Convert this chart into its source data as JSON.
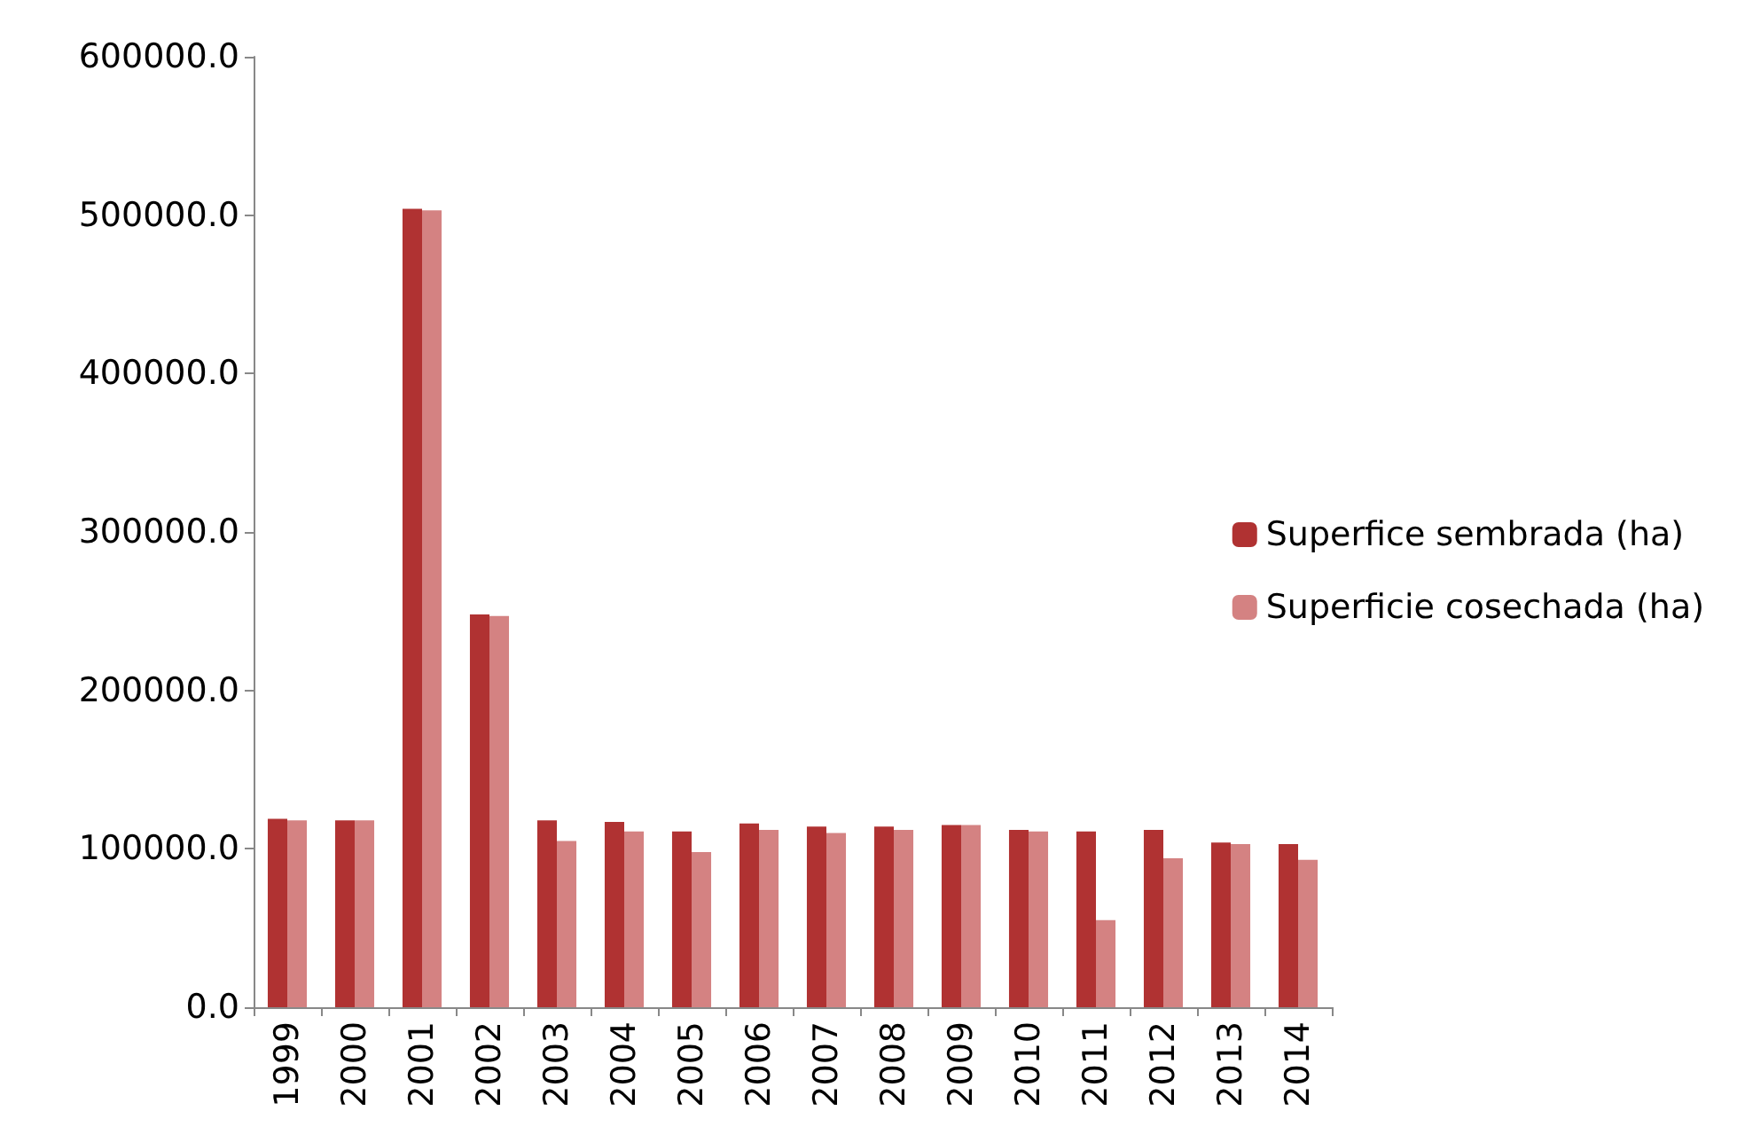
{
  "chart_data": {
    "type": "bar",
    "categories": [
      "1999",
      "2000",
      "2001",
      "2002",
      "2003",
      "2004",
      "2005",
      "2006",
      "2007",
      "2008",
      "2009",
      "2010",
      "2011",
      "2012",
      "2013",
      "2014"
    ],
    "series": [
      {
        "name": "Superfice sembrada (ha)",
        "color": "#b03232",
        "values": [
          119000,
          118000,
          504000,
          248000,
          118000,
          117000,
          111000,
          116000,
          114000,
          114000,
          115000,
          112000,
          111000,
          112000,
          104000,
          103000
        ]
      },
      {
        "name": "Superficie cosechada (ha)",
        "color": "#d48282",
        "values": [
          118000,
          118000,
          503000,
          247000,
          105000,
          111000,
          98000,
          112000,
          110000,
          112000,
          115000,
          111000,
          55000,
          94000,
          103000,
          93000
        ]
      }
    ],
    "ylim": [
      0,
      600000
    ],
    "yticks": [
      {
        "value": 0,
        "label": "0.0"
      },
      {
        "value": 100000,
        "label": "100000.0"
      },
      {
        "value": 200000,
        "label": "200000.0"
      },
      {
        "value": 300000,
        "label": "300000.0"
      },
      {
        "value": 400000,
        "label": "400000.0"
      },
      {
        "value": 500000,
        "label": "500000.0"
      },
      {
        "value": 600000,
        "label": "600000.0"
      }
    ],
    "grid": false,
    "legend": "right"
  }
}
